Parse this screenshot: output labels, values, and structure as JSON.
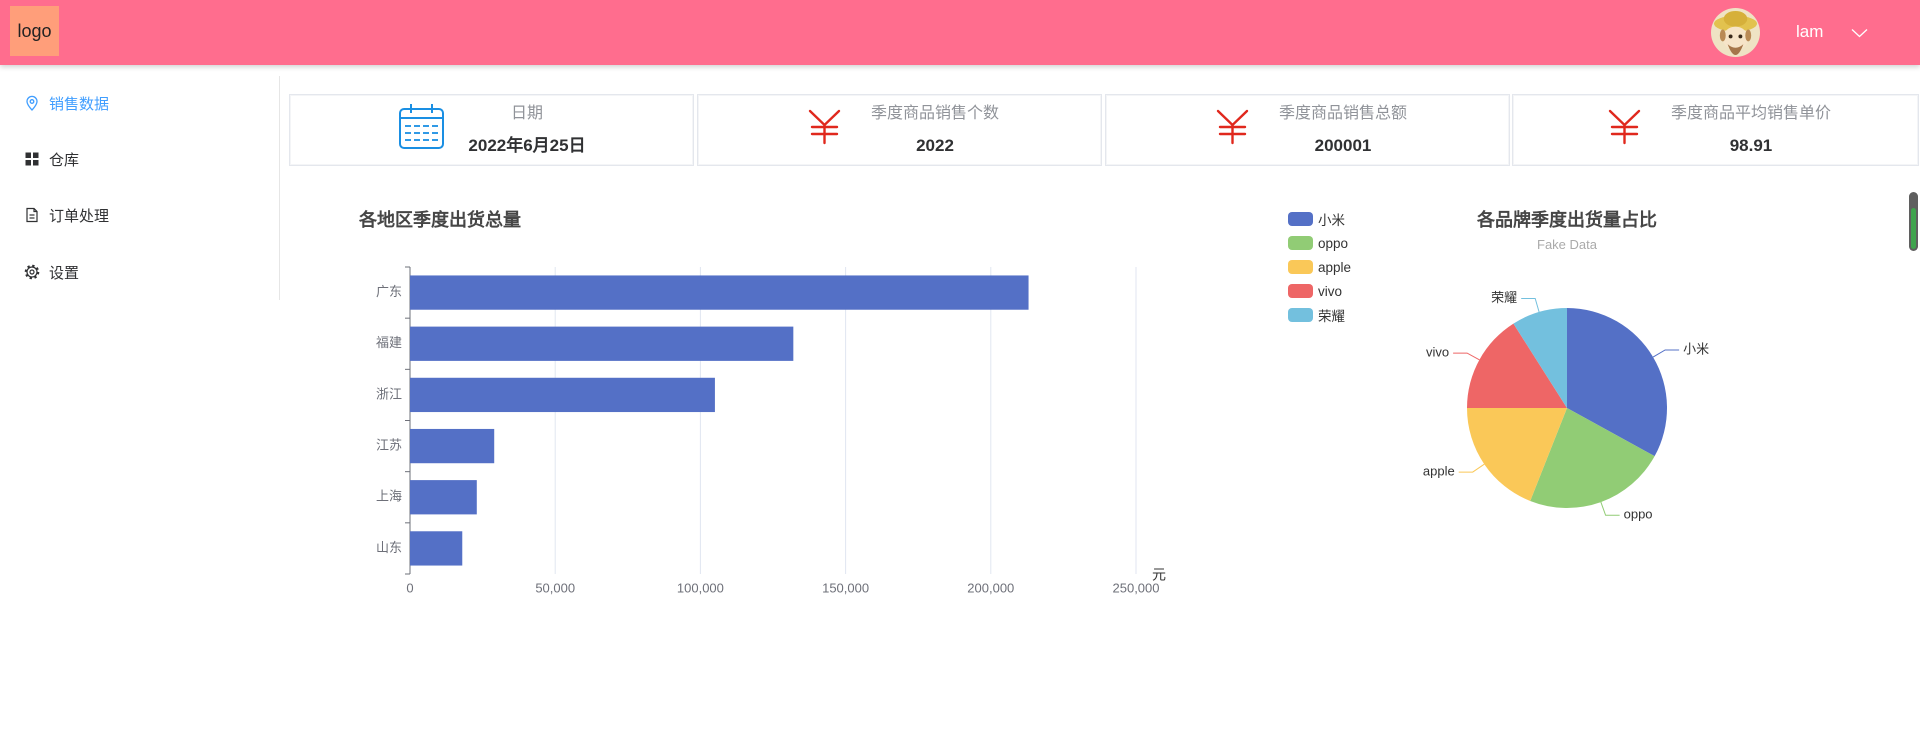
{
  "header": {
    "logo": "logo",
    "username": "lam",
    "bg_color": "#ff6d8e",
    "logo_bg_color": "#ff9e7a"
  },
  "sidebar": {
    "active_color": "#409eff",
    "items": [
      {
        "label": "销售数据",
        "icon": "location-icon",
        "active": true
      },
      {
        "label": "仓库",
        "icon": "grid-icon",
        "active": false
      },
      {
        "label": "订单处理",
        "icon": "document-icon",
        "active": false
      },
      {
        "label": "设置",
        "icon": "gear-icon",
        "active": false
      }
    ]
  },
  "stats": [
    {
      "icon": "calendar-icon",
      "title": "日期",
      "value": "2022年6月25日"
    },
    {
      "icon": "yuan-icon",
      "title": "季度商品销售个数",
      "value": "2022"
    },
    {
      "icon": "yuan-icon",
      "title": "季度商品销售总额",
      "value": "200001"
    },
    {
      "icon": "yuan-icon",
      "title": "季度商品平均销售单价",
      "value": "98.91"
    }
  ],
  "chart_data": [
    {
      "type": "bar",
      "orientation": "horizontal",
      "title": "各地区季度出货总量",
      "categories": [
        "广东",
        "福建",
        "浙江",
        "江苏",
        "上海",
        "山东"
      ],
      "values": [
        213000,
        132000,
        105000,
        29000,
        23000,
        18000
      ],
      "xlabel": "元",
      "ylabel": "",
      "xlim": [
        0,
        250000
      ],
      "xticks": [
        "0",
        "50,000",
        "100,000",
        "150,000",
        "200,000",
        "250,000"
      ],
      "grid": true,
      "color": "#5470c6"
    },
    {
      "type": "pie",
      "title": "各品牌季度出货量占比",
      "subtitle": "Fake Data",
      "categories": [
        "小米",
        "oppo",
        "apple",
        "vivo",
        "荣耀"
      ],
      "values": [
        33,
        23,
        19,
        16,
        9
      ],
      "colors": [
        "#5470c6",
        "#91cc75",
        "#fac858",
        "#ee6666",
        "#73c0de"
      ],
      "legend": "left"
    }
  ]
}
